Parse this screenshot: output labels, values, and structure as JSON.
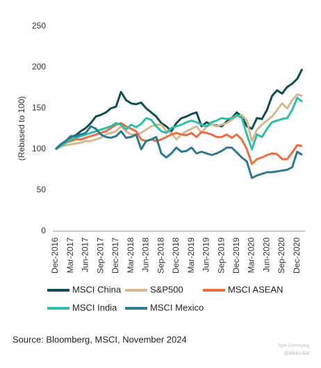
{
  "chart_data": {
    "type": "line",
    "ylabel": "(Rebased to 100)",
    "categories": [
      "Dec-2016",
      null,
      null,
      "Mar-2017",
      null,
      null,
      "Jun-2017",
      null,
      null,
      "Sep-2017",
      null,
      null,
      "Dec-2017",
      null,
      null,
      "Mar-2018",
      null,
      null,
      "Jun-2018",
      null,
      null,
      "Sep-2018",
      null,
      null,
      "Dec-2018",
      null,
      null,
      "Mar-2019",
      null,
      null,
      "Jun-2019",
      null,
      null,
      "Sep-2019",
      null,
      null,
      "Dec-2019",
      null,
      null,
      "Mar-2020",
      null,
      null,
      "Jun-2020",
      null,
      null,
      "Sep-2020",
      null,
      null,
      "Dec-2020",
      null
    ],
    "ylim": [
      0,
      250
    ],
    "yticks": [
      0,
      50,
      100,
      150,
      200,
      250
    ],
    "grid": false,
    "series": [
      {
        "name": "MSCI China",
        "color": "#0f4f52",
        "values": [
          100,
          106,
          110,
          115,
          117,
          122,
          126,
          132,
          140,
          142,
          145,
          150,
          152,
          170,
          160,
          156,
          155,
          157,
          150,
          145,
          140,
          132,
          128,
          122,
          132,
          138,
          140,
          143,
          145,
          128,
          133,
          130,
          129,
          128,
          134,
          138,
          145,
          140,
          128,
          125,
          138,
          137,
          148,
          165,
          172,
          168,
          176,
          180,
          186,
          198
        ]
      },
      {
        "name": "S&P500",
        "color": "#d6b78f",
        "values": [
          100,
          103,
          105,
          106,
          107,
          108,
          110,
          110,
          112,
          114,
          118,
          120,
          122,
          128,
          122,
          118,
          118,
          120,
          124,
          128,
          130,
          130,
          122,
          120,
          112,
          118,
          122,
          125,
          128,
          120,
          128,
          130,
          128,
          130,
          132,
          136,
          140,
          142,
          135,
          110,
          124,
          130,
          135,
          140,
          148,
          156,
          150,
          160,
          167,
          165
        ]
      },
      {
        "name": "MSCI ASEAN",
        "color": "#ef6c3e",
        "values": [
          100,
          104,
          108,
          110,
          112,
          112,
          114,
          116,
          118,
          120,
          122,
          126,
          130,
          132,
          128,
          125,
          122,
          112,
          110,
          112,
          110,
          112,
          115,
          118,
          120,
          118,
          117,
          120,
          115,
          121,
          120,
          118,
          115,
          115,
          118,
          114,
          118,
          112,
          100,
          82,
          88,
          90,
          93,
          95,
          94,
          88,
          88,
          96,
          105,
          104
        ]
      },
      {
        "name": "MSCI India",
        "color": "#2dbfa9",
        "values": [
          100,
          104,
          108,
          112,
          114,
          116,
          118,
          120,
          122,
          124,
          126,
          128,
          132,
          130,
          124,
          130,
          127,
          131,
          138,
          136,
          128,
          122,
          120,
          126,
          128,
          130,
          133,
          135,
          133,
          130,
          128,
          133,
          135,
          138,
          137,
          138,
          142,
          138,
          118,
          100,
          118,
          115,
          125,
          133,
          135,
          137,
          138,
          148,
          163,
          158
        ]
      },
      {
        "name": "MSCI Mexico",
        "color": "#2b7a8f",
        "values": [
          100,
          106,
          110,
          116,
          116,
          118,
          120,
          128,
          125,
          118,
          115,
          114,
          116,
          122,
          114,
          115,
          118,
          100,
          110,
          112,
          115,
          95,
          90,
          95,
          102,
          97,
          98,
          102,
          95,
          97,
          95,
          93,
          95,
          98,
          102,
          102,
          96,
          90,
          85,
          65,
          68,
          70,
          72,
          72,
          73,
          74,
          75,
          78,
          97,
          93
        ]
      }
    ]
  },
  "source": "Source: Bloomberg, MSCI, November 2024",
  "watermark": [
    "Tiger Community",
    "@Nikko AM"
  ]
}
